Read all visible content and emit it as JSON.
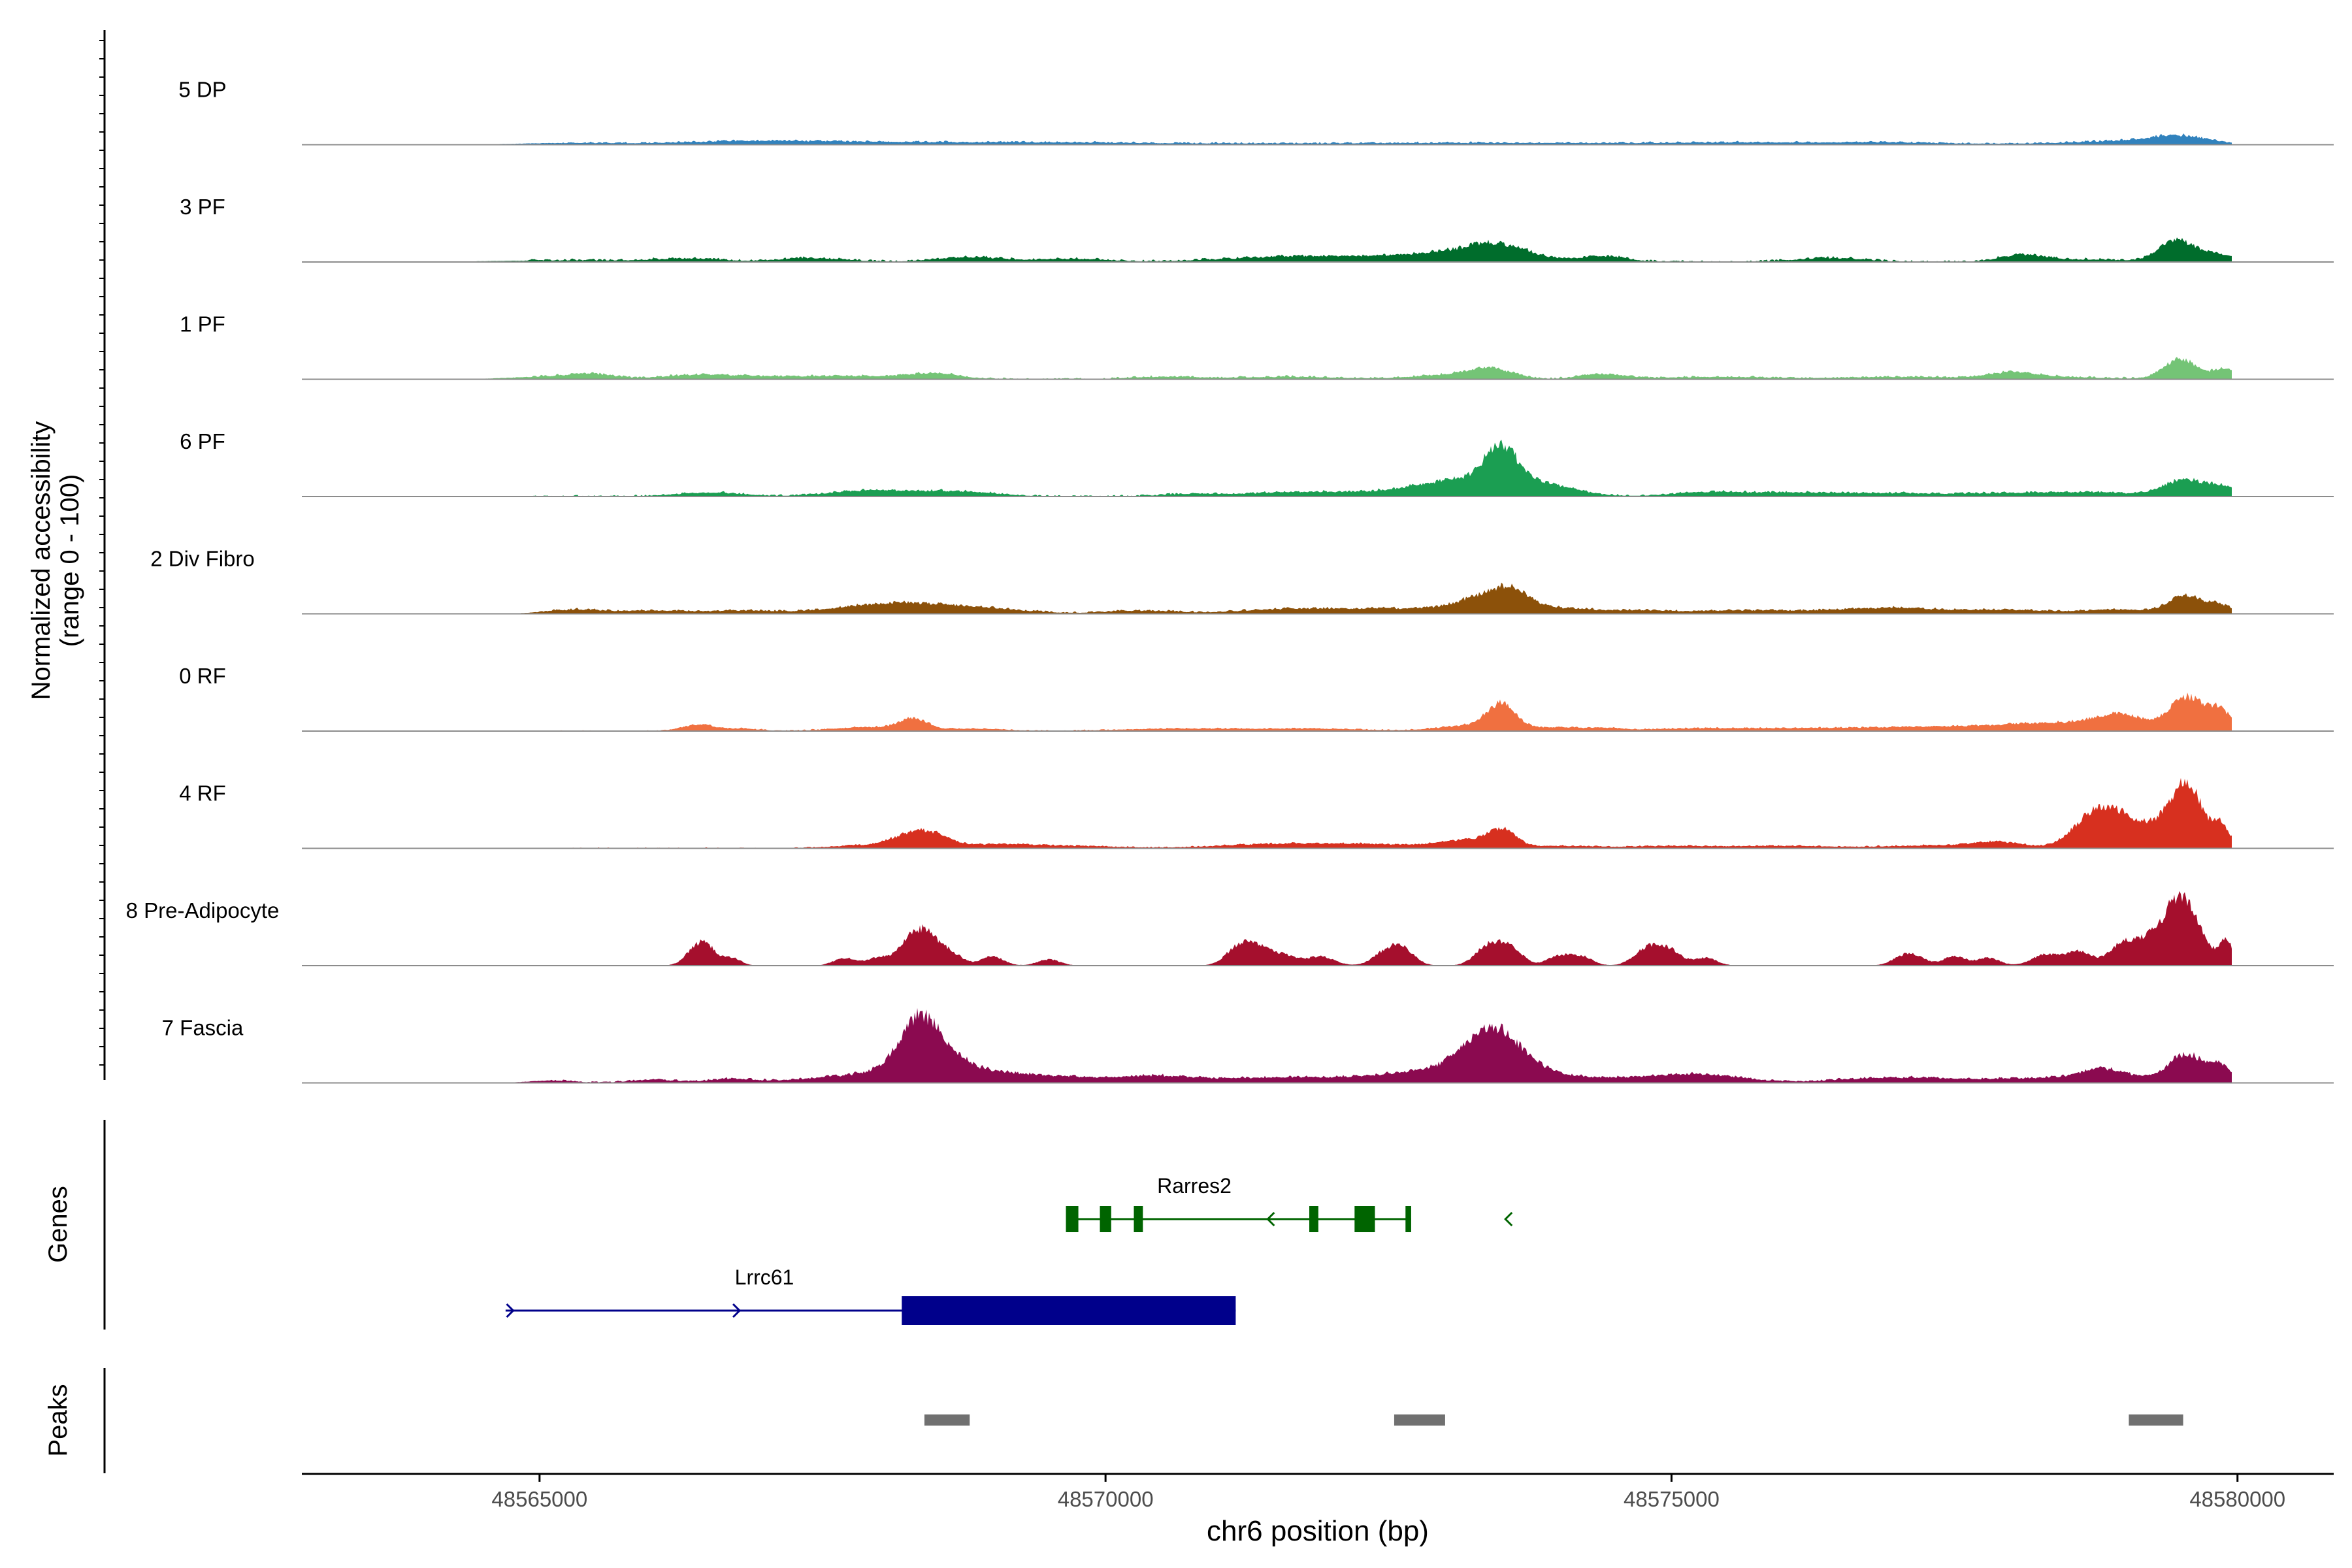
{
  "chart_data": {
    "type": "area",
    "title": "",
    "ylabel_line1": "Normalized accessibility",
    "ylabel_line2": "(range 0 - 100)",
    "xlabel": "chr6 position (bp)",
    "xlim": [
      48562900,
      48580850
    ],
    "x_ticks": [
      48565000,
      48570000,
      48575000,
      48580000
    ],
    "x_tick_labels": [
      "48565000",
      "48570000",
      "48575000",
      "48580000"
    ],
    "ylim": [
      0,
      100
    ],
    "tracks": [
      {
        "name": "5 DP",
        "color": "#3182bd",
        "peaks": [
          [
            48565200,
            420,
            2
          ],
          [
            48566700,
            600,
            3
          ],
          [
            48567500,
            800,
            2
          ],
          [
            48568500,
            900,
            2
          ],
          [
            48569800,
            700,
            2
          ],
          [
            48571200,
            500,
            1
          ],
          [
            48572800,
            900,
            2
          ],
          [
            48574000,
            500,
            1
          ],
          [
            48575300,
            700,
            2
          ],
          [
            48576500,
            800,
            2
          ],
          [
            48578100,
            700,
            1
          ],
          [
            48579500,
            250,
            10
          ],
          [
            48579000,
            400,
            4
          ],
          [
            48576800,
            300,
            1
          ]
        ],
        "noise": [
          [
            48565200,
            48579950,
            1.8
          ]
        ]
      },
      {
        "name": "3 PF",
        "color": "#006d2c",
        "peaks": [
          [
            48565200,
            600,
            2
          ],
          [
            48566300,
            300,
            4
          ],
          [
            48567400,
            300,
            5
          ],
          [
            48568800,
            300,
            6
          ],
          [
            48569700,
            300,
            4
          ],
          [
            48571600,
            600,
            4
          ],
          [
            48572400,
            800,
            5
          ],
          [
            48573200,
            400,
            10
          ],
          [
            48573500,
            250,
            14
          ],
          [
            48574400,
            200,
            7
          ],
          [
            48576400,
            300,
            5
          ],
          [
            48578100,
            200,
            9
          ],
          [
            48578700,
            300,
            3
          ],
          [
            48579450,
            150,
            26
          ],
          [
            48579800,
            200,
            10
          ]
        ],
        "noise": [
          [
            48564900,
            48579950,
            2.2
          ]
        ]
      },
      {
        "name": "1 PF",
        "color": "#74c476",
        "peaks": [
          [
            48565000,
            300,
            3
          ],
          [
            48565450,
            200,
            6
          ],
          [
            48566400,
            300,
            4
          ],
          [
            48567000,
            600,
            3
          ],
          [
            48568500,
            200,
            6
          ],
          [
            48568000,
            500,
            3
          ],
          [
            48570500,
            300,
            3
          ],
          [
            48571600,
            500,
            3
          ],
          [
            48573000,
            300,
            5
          ],
          [
            48573400,
            200,
            12
          ],
          [
            48574400,
            200,
            6
          ],
          [
            48575400,
            500,
            3
          ],
          [
            48577000,
            500,
            3
          ],
          [
            48578000,
            200,
            7
          ],
          [
            48579500,
            150,
            25
          ],
          [
            48579900,
            100,
            14
          ],
          [
            48578400,
            400,
            3
          ]
        ],
        "noise": [
          [
            48564900,
            48579950,
            2.0
          ]
        ]
      },
      {
        "name": "6 PF",
        "color": "#1b9e52",
        "peaks": [
          [
            48566500,
            300,
            5
          ],
          [
            48567800,
            300,
            5
          ],
          [
            48568300,
            400,
            5
          ],
          [
            48568800,
            300,
            4
          ],
          [
            48570800,
            300,
            3
          ],
          [
            48571700,
            400,
            4
          ],
          [
            48572600,
            700,
            4
          ],
          [
            48573100,
            300,
            8
          ],
          [
            48573500,
            150,
            46
          ],
          [
            48573300,
            500,
            12
          ],
          [
            48573900,
            250,
            10
          ],
          [
            48575300,
            300,
            5
          ],
          [
            48576000,
            400,
            4
          ],
          [
            48577000,
            600,
            4
          ],
          [
            48578200,
            400,
            4
          ],
          [
            48578800,
            300,
            4
          ],
          [
            48579550,
            200,
            22
          ],
          [
            48579900,
            100,
            10
          ]
        ],
        "noise": [
          [
            48564900,
            48579950,
            2.0
          ]
        ]
      },
      {
        "name": "2 Div Fibro",
        "color": "#8c510a",
        "peaks": [
          [
            48565300,
            250,
            5
          ],
          [
            48566000,
            300,
            4
          ],
          [
            48566800,
            300,
            4
          ],
          [
            48567900,
            400,
            7
          ],
          [
            48568300,
            400,
            8
          ],
          [
            48568900,
            400,
            6
          ],
          [
            48570300,
            300,
            4
          ],
          [
            48571500,
            400,
            4
          ],
          [
            48572200,
            500,
            5
          ],
          [
            48572900,
            400,
            4
          ],
          [
            48573400,
            250,
            22
          ],
          [
            48573600,
            150,
            14
          ],
          [
            48574000,
            300,
            6
          ],
          [
            48574700,
            300,
            4
          ],
          [
            48575600,
            400,
            4
          ],
          [
            48576500,
            400,
            4
          ],
          [
            48577000,
            300,
            5
          ],
          [
            48577900,
            500,
            5
          ],
          [
            48579000,
            300,
            5
          ],
          [
            48579550,
            150,
            22
          ],
          [
            48579850,
            100,
            10
          ]
        ],
        "noise": [
          [
            48565000,
            48579950,
            1.8
          ]
        ]
      },
      {
        "name": "0 RF",
        "color": "#f07040",
        "peaks": [
          [
            48566400,
            150,
            8
          ],
          [
            48566800,
            150,
            3
          ],
          [
            48567900,
            300,
            5
          ],
          [
            48568300,
            120,
            14
          ],
          [
            48568800,
            300,
            3
          ],
          [
            48570600,
            500,
            3
          ],
          [
            48571800,
            500,
            3
          ],
          [
            48573300,
            300,
            8
          ],
          [
            48573500,
            120,
            30
          ],
          [
            48574000,
            200,
            4
          ],
          [
            48574400,
            150,
            3
          ],
          [
            48575200,
            500,
            3
          ],
          [
            48576300,
            600,
            3
          ],
          [
            48577700,
            700,
            6
          ],
          [
            48578300,
            300,
            6
          ],
          [
            48578900,
            250,
            12
          ],
          [
            48579000,
            200,
            10
          ],
          [
            48579550,
            150,
            44
          ],
          [
            48579850,
            100,
            25
          ]
        ],
        "noise": [
          [
            48565000,
            48579950,
            1.2
          ]
        ]
      },
      {
        "name": "4 RF",
        "color": "#d7301f",
        "peaks": [
          [
            48567900,
            300,
            4
          ],
          [
            48568300,
            180,
            16
          ],
          [
            48568500,
            150,
            10
          ],
          [
            48569000,
            300,
            4
          ],
          [
            48569600,
            500,
            3
          ],
          [
            48571300,
            400,
            4
          ],
          [
            48572000,
            400,
            5
          ],
          [
            48572800,
            400,
            4
          ],
          [
            48573200,
            200,
            8
          ],
          [
            48573500,
            120,
            22
          ],
          [
            48574000,
            300,
            3
          ],
          [
            48575000,
            400,
            3
          ],
          [
            48576000,
            400,
            3
          ],
          [
            48577400,
            500,
            4
          ],
          [
            48577900,
            200,
            6
          ],
          [
            48578700,
            180,
            30
          ],
          [
            48578950,
            200,
            38
          ],
          [
            48579300,
            120,
            20
          ],
          [
            48579550,
            130,
            86
          ],
          [
            48579850,
            80,
            30
          ]
        ],
        "noise": [
          [
            48565000,
            48579950,
            1.2
          ]
        ]
      },
      {
        "name": "8 Pre-Adipocyte",
        "color": "#a50f2d",
        "peaks": [
          [
            48566400,
            100,
            24
          ],
          [
            48566500,
            80,
            12
          ],
          [
            48566700,
            80,
            10
          ],
          [
            48567700,
            100,
            10
          ],
          [
            48568000,
            100,
            10
          ],
          [
            48568300,
            120,
            32
          ],
          [
            48568450,
            120,
            26
          ],
          [
            48568650,
            100,
            12
          ],
          [
            48569000,
            100,
            12
          ],
          [
            48569500,
            100,
            8
          ],
          [
            48571200,
            120,
            28
          ],
          [
            48571400,
            100,
            16
          ],
          [
            48571600,
            100,
            12
          ],
          [
            48571900,
            120,
            12
          ],
          [
            48572500,
            120,
            20
          ],
          [
            48572650,
            100,
            14
          ],
          [
            48573400,
            120,
            28
          ],
          [
            48573600,
            100,
            18
          ],
          [
            48574000,
            100,
            12
          ],
          [
            48574200,
            100,
            12
          ],
          [
            48574800,
            120,
            24
          ],
          [
            48575000,
            100,
            16
          ],
          [
            48575300,
            100,
            10
          ],
          [
            48577100,
            120,
            16
          ],
          [
            48577500,
            100,
            12
          ],
          [
            48577800,
            100,
            10
          ],
          [
            48578300,
            120,
            14
          ],
          [
            48578600,
            120,
            18
          ],
          [
            48579000,
            120,
            30
          ],
          [
            48579200,
            80,
            14
          ],
          [
            48579550,
            150,
            60
          ],
          [
            48579400,
            150,
            40
          ],
          [
            48579900,
            60,
            30
          ]
        ],
        "noise": []
      },
      {
        "name": "7 Fascia",
        "color": "#8b0a50",
        "peaks": [
          [
            48565100,
            200,
            3
          ],
          [
            48566000,
            200,
            4
          ],
          [
            48566700,
            200,
            5
          ],
          [
            48567400,
            300,
            4
          ],
          [
            48567900,
            300,
            8
          ],
          [
            48568150,
            200,
            12
          ],
          [
            48568350,
            160,
            56
          ],
          [
            48568550,
            200,
            30
          ],
          [
            48568900,
            300,
            12
          ],
          [
            48569400,
            300,
            6
          ],
          [
            48570000,
            400,
            5
          ],
          [
            48570500,
            300,
            6
          ],
          [
            48571200,
            400,
            4
          ],
          [
            48571800,
            400,
            5
          ],
          [
            48572600,
            400,
            8
          ],
          [
            48573000,
            300,
            12
          ],
          [
            48573300,
            200,
            30
          ],
          [
            48573500,
            200,
            40
          ],
          [
            48573800,
            250,
            12
          ],
          [
            48574400,
            400,
            6
          ],
          [
            48575100,
            300,
            8
          ],
          [
            48575500,
            300,
            5
          ],
          [
            48576600,
            300,
            4
          ],
          [
            48577100,
            300,
            4
          ],
          [
            48577600,
            400,
            4
          ],
          [
            48578300,
            300,
            5
          ],
          [
            48578800,
            200,
            14
          ],
          [
            48579100,
            300,
            5
          ],
          [
            48579550,
            150,
            36
          ],
          [
            48579850,
            100,
            20
          ]
        ],
        "noise": [
          [
            48565100,
            48579950,
            1.8
          ]
        ]
      }
    ],
    "genes_label": "Genes",
    "genes": [
      {
        "name": "Rarres2",
        "color": "#006400",
        "start": 48569650,
        "end": 48572700,
        "strand": "-",
        "exons": [
          [
            48569650,
            48569760
          ],
          [
            48569950,
            48570050
          ],
          [
            48570250,
            48570330
          ],
          [
            48571800,
            48571880
          ],
          [
            48572200,
            48572380
          ],
          [
            48572650,
            48572700
          ]
        ]
      },
      {
        "name": "Lrrc61",
        "color": "#00008b",
        "start": 48564700,
        "end": 48571150,
        "strand": "+",
        "exons": [
          [
            48568200,
            48571150
          ]
        ]
      }
    ],
    "peaks_label": "Peaks",
    "peak_regions": [
      [
        48568400,
        48568800
      ],
      [
        48572550,
        48573000
      ],
      [
        48579040,
        48579520
      ]
    ]
  }
}
